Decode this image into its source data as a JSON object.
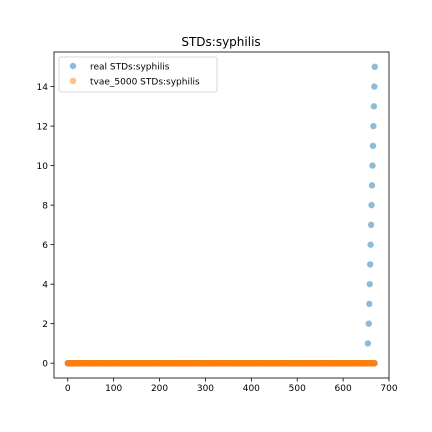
{
  "chart_data": {
    "type": "scatter",
    "title": "STDs:syphilis",
    "xlabel": "",
    "ylabel": "",
    "xlim": [
      -30,
      700
    ],
    "ylim": [
      -0.75,
      15.75
    ],
    "x_ticks": [
      0,
      100,
      200,
      300,
      400,
      500,
      600,
      700
    ],
    "y_ticks": [
      0,
      2,
      4,
      6,
      8,
      10,
      12,
      14
    ],
    "grid": false,
    "legend_position": "upper-left",
    "series": [
      {
        "name": "real STDs:syphilis",
        "color": "#1f77b4",
        "alpha": 0.5,
        "zero_run": {
          "y": 0,
          "x_start": 0,
          "x_end": 668
        },
        "points": [
          [
            654,
            1
          ],
          [
            656,
            2
          ],
          [
            657,
            3
          ],
          [
            658,
            4
          ],
          [
            659,
            5
          ],
          [
            660,
            6
          ],
          [
            661,
            7
          ],
          [
            662,
            8
          ],
          [
            663,
            9
          ],
          [
            664,
            10
          ],
          [
            665,
            11
          ],
          [
            666,
            12
          ],
          [
            667,
            13
          ],
          [
            668,
            14
          ],
          [
            669,
            15
          ]
        ]
      },
      {
        "name": "tvae_5000 STDs:syphilis",
        "color": "#ff7f0e",
        "alpha": 0.5,
        "zero_run": {
          "y": 0,
          "x_start": 0,
          "x_end": 669
        },
        "points": []
      }
    ]
  }
}
